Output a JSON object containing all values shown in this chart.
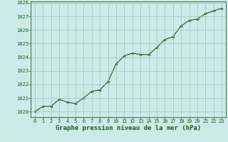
{
  "x": [
    0,
    1,
    2,
    3,
    4,
    5,
    6,
    7,
    8,
    9,
    10,
    11,
    12,
    13,
    14,
    15,
    16,
    17,
    18,
    19,
    20,
    21,
    22,
    23
  ],
  "y": [
    1020.0,
    1020.4,
    1020.4,
    1020.9,
    1020.7,
    1020.6,
    1021.0,
    1021.5,
    1021.6,
    1022.2,
    1023.5,
    1024.1,
    1024.3,
    1024.2,
    1024.2,
    1024.7,
    1025.3,
    1025.5,
    1026.3,
    1026.7,
    1026.8,
    1027.2,
    1027.4,
    1027.6
  ],
  "ylim": [
    1019.6,
    1028.1
  ],
  "yticks": [
    1020,
    1021,
    1022,
    1023,
    1024,
    1025,
    1026,
    1027,
    1028
  ],
  "xticks": [
    0,
    1,
    2,
    3,
    4,
    5,
    6,
    7,
    8,
    9,
    10,
    11,
    12,
    13,
    14,
    15,
    16,
    17,
    18,
    19,
    20,
    21,
    22,
    23
  ],
  "xlabel": "Graphe pression niveau de la mer (hPa)",
  "line_color": "#1a5c1a",
  "marker": "D",
  "marker_size": 1.8,
  "bg_color": "#cceae7",
  "grid_color": "#9dbfbc",
  "xlabel_color": "#1a5c1a",
  "tick_label_color": "#1a5c1a",
  "spine_color": "#1a5c1a",
  "line_width": 0.8,
  "xlabel_fontsize": 6.5,
  "tick_fontsize": 5.0
}
